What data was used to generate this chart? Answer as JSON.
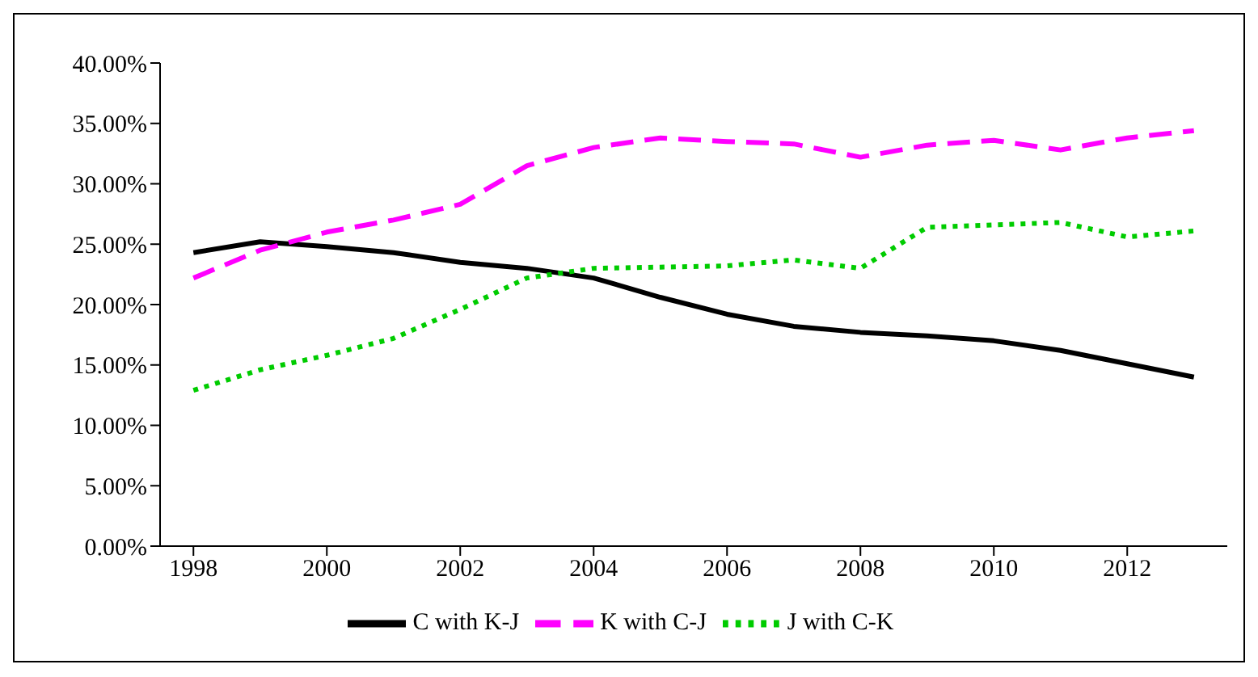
{
  "chart_data": {
    "type": "line",
    "x": [
      1998,
      1999,
      2000,
      2001,
      2002,
      2003,
      2004,
      2005,
      2006,
      2007,
      2008,
      2009,
      2010,
      2011,
      2012,
      2013
    ],
    "series": [
      {
        "name": "C with K-J",
        "color": "#000000",
        "line_style": "solid",
        "values": [
          24.3,
          25.2,
          24.8,
          24.3,
          23.5,
          23.0,
          22.2,
          20.6,
          19.2,
          18.2,
          17.7,
          17.4,
          17.0,
          16.2,
          15.1,
          14.0
        ]
      },
      {
        "name": "K with C-J",
        "color": "#ff00ff",
        "line_style": "dashed",
        "values": [
          22.2,
          24.5,
          26.0,
          27.0,
          28.3,
          31.5,
          33.0,
          33.8,
          33.5,
          33.3,
          32.2,
          33.2,
          33.6,
          32.8,
          33.8,
          34.4
        ]
      },
      {
        "name": "J with C-K",
        "color": "#00cc00",
        "line_style": "dotted",
        "values": [
          12.9,
          14.6,
          15.8,
          17.2,
          19.6,
          22.2,
          23.0,
          23.1,
          23.2,
          23.7,
          23.0,
          26.4,
          26.6,
          26.8,
          25.6,
          26.1
        ]
      }
    ],
    "xlim": [
      1997.5,
      2013.5
    ],
    "xticks": [
      1998,
      2000,
      2002,
      2004,
      2006,
      2008,
      2010,
      2012
    ],
    "ylim": [
      0,
      40
    ],
    "yticks": [
      {
        "value": 0,
        "label": "0.00%"
      },
      {
        "value": 5,
        "label": "5.00%"
      },
      {
        "value": 10,
        "label": "10.00%"
      },
      {
        "value": 15,
        "label": "15.00%"
      },
      {
        "value": 20,
        "label": "20.00%"
      },
      {
        "value": 25,
        "label": "25.00%"
      },
      {
        "value": 30,
        "label": "30.00%"
      },
      {
        "value": 35,
        "label": "35.00%"
      },
      {
        "value": 40,
        "label": "40.00%"
      }
    ],
    "grid": false,
    "legend": "bottom",
    "marker": "none"
  }
}
